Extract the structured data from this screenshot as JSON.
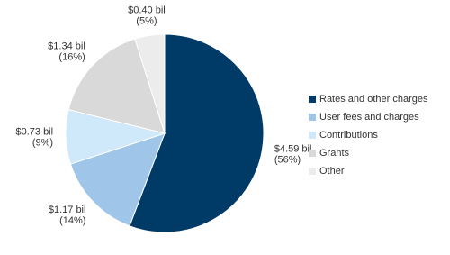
{
  "chart_data": {
    "type": "pie",
    "categories": [
      "Rates and other charges",
      "User fees and charges",
      "Contributions",
      "Grants",
      "Other"
    ],
    "values": [
      4.59,
      1.17,
      0.73,
      1.34,
      0.4
    ],
    "value_labels": [
      "$4.59 bil",
      "$1.17 bil",
      "$0.73 bil",
      "$1.34 bil",
      "$0.40 bil"
    ],
    "percents": [
      56,
      14,
      9,
      16,
      5
    ],
    "percent_labels": [
      "(56%)",
      "(14%)",
      "(9%)",
      "(16%)",
      "(5%)"
    ],
    "colors": [
      "#003a66",
      "#9fc5e8",
      "#cfe9fa",
      "#d9d9d9",
      "#ececec"
    ],
    "legend": "right"
  }
}
